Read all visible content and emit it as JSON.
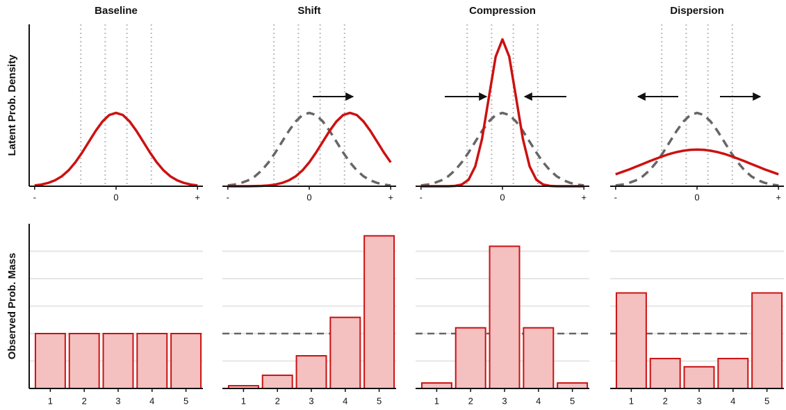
{
  "chart_data": [
    {
      "type": "line",
      "title": "Baseline",
      "ylabel": "Latent Prob. Density",
      "x": [
        -3,
        -2.75,
        -2.5,
        -2.25,
        -2,
        -1.75,
        -1.5,
        -1.25,
        -1,
        -0.75,
        -0.5,
        -0.25,
        0,
        0.25,
        0.5,
        0.75,
        1,
        1.25,
        1.5,
        1.75,
        2,
        2.25,
        2.5,
        2.75,
        3
      ],
      "series": [
        {
          "color": "#cc1111",
          "style": "solid",
          "values": [
            0.004,
            0.009,
            0.018,
            0.032,
            0.054,
            0.086,
            0.13,
            0.183,
            0.242,
            0.301,
            0.352,
            0.387,
            0.399,
            0.387,
            0.352,
            0.301,
            0.242,
            0.183,
            0.13,
            0.086,
            0.054,
            0.032,
            0.018,
            0.009,
            0.004
          ]
        }
      ],
      "thresholds": [
        -1.3,
        -0.4,
        0.4,
        1.3
      ],
      "xlim": [
        -3.2,
        3.2
      ],
      "xticks": [
        {
          "value": -3,
          "label": "-"
        },
        0,
        {
          "value": 3,
          "label": "+"
        }
      ],
      "ylim": [
        0,
        0.88
      ]
    },
    {
      "type": "line",
      "title": "Shift",
      "x": [
        -3,
        -2.75,
        -2.5,
        -2.25,
        -2,
        -1.75,
        -1.5,
        -1.25,
        -1,
        -0.75,
        -0.5,
        -0.25,
        0,
        0.25,
        0.5,
        0.75,
        1,
        1.25,
        1.5,
        1.75,
        2,
        2.25,
        2.5,
        2.75,
        3
      ],
      "series": [
        {
          "color": "#666666",
          "style": "dashed",
          "values": [
            0.004,
            0.009,
            0.018,
            0.032,
            0.054,
            0.086,
            0.13,
            0.183,
            0.242,
            0.301,
            0.352,
            0.387,
            0.399,
            0.387,
            0.352,
            0.301,
            0.242,
            0.183,
            0.13,
            0.086,
            0.054,
            0.032,
            0.018,
            0.009,
            0.004
          ]
        },
        {
          "color": "#cc1111",
          "style": "solid",
          "values": [
            0,
            0,
            0,
            0,
            0.001,
            0.002,
            0.004,
            0.009,
            0.018,
            0.032,
            0.054,
            0.086,
            0.13,
            0.183,
            0.242,
            0.301,
            0.352,
            0.387,
            0.399,
            0.387,
            0.352,
            0.301,
            0.242,
            0.183,
            0.13
          ]
        }
      ],
      "thresholds": [
        -1.3,
        -0.4,
        0.4,
        1.3
      ],
      "xlim": [
        -3.2,
        3.2
      ],
      "xticks": [
        {
          "value": -3,
          "label": "-"
        },
        0,
        {
          "value": 3,
          "label": "+"
        }
      ],
      "ylim": [
        0,
        0.88
      ]
    },
    {
      "type": "line",
      "title": "Compression",
      "x": [
        -3,
        -2.75,
        -2.5,
        -2.25,
        -2,
        -1.75,
        -1.5,
        -1.25,
        -1,
        -0.75,
        -0.5,
        -0.25,
        0,
        0.25,
        0.5,
        0.75,
        1,
        1.25,
        1.5,
        1.75,
        2,
        2.25,
        2.5,
        2.75,
        3
      ],
      "series": [
        {
          "color": "#666666",
          "style": "dashed",
          "values": [
            0.004,
            0.009,
            0.018,
            0.032,
            0.054,
            0.086,
            0.13,
            0.183,
            0.242,
            0.301,
            0.352,
            0.387,
            0.399,
            0.387,
            0.352,
            0.301,
            0.242,
            0.183,
            0.13,
            0.086,
            0.054,
            0.032,
            0.018,
            0.009,
            0.004
          ]
        },
        {
          "color": "#cc1111",
          "style": "solid",
          "values": [
            0,
            0,
            0,
            0,
            0,
            0.002,
            0.009,
            0.035,
            0.108,
            0.259,
            0.484,
            0.704,
            0.798,
            0.704,
            0.484,
            0.259,
            0.108,
            0.035,
            0.009,
            0.002,
            0,
            0,
            0,
            0,
            0
          ]
        }
      ],
      "thresholds": [
        -1.3,
        -0.4,
        0.4,
        1.3
      ],
      "xlim": [
        -3.2,
        3.2
      ],
      "xticks": [
        {
          "value": -3,
          "label": "-"
        },
        0,
        {
          "value": 3,
          "label": "+"
        }
      ],
      "ylim": [
        0,
        0.88
      ]
    },
    {
      "type": "line",
      "title": "Dispersion",
      "x": [
        -3,
        -2.75,
        -2.5,
        -2.25,
        -2,
        -1.75,
        -1.5,
        -1.25,
        -1,
        -0.75,
        -0.5,
        -0.25,
        0,
        0.25,
        0.5,
        0.75,
        1,
        1.25,
        1.5,
        1.75,
        2,
        2.25,
        2.5,
        2.75,
        3
      ],
      "series": [
        {
          "color": "#666666",
          "style": "dashed",
          "values": [
            0.004,
            0.009,
            0.018,
            0.032,
            0.054,
            0.086,
            0.13,
            0.183,
            0.242,
            0.301,
            0.352,
            0.387,
            0.399,
            0.387,
            0.352,
            0.301,
            0.242,
            0.183,
            0.13,
            0.086,
            0.054,
            0.032,
            0.018,
            0.009,
            0.004
          ]
        },
        {
          "color": "#cc1111",
          "style": "solid",
          "values": [
            0.065,
            0.078,
            0.091,
            0.106,
            0.121,
            0.136,
            0.15,
            0.164,
            0.176,
            0.186,
            0.193,
            0.198,
            0.199,
            0.198,
            0.193,
            0.186,
            0.176,
            0.164,
            0.15,
            0.136,
            0.121,
            0.106,
            0.091,
            0.078,
            0.065
          ]
        }
      ],
      "thresholds": [
        -1.3,
        -0.4,
        0.4,
        1.3
      ],
      "xlim": [
        -3.2,
        3.2
      ],
      "xticks": [
        {
          "value": -3,
          "label": "-"
        },
        0,
        {
          "value": 3,
          "label": "+"
        }
      ],
      "ylim": [
        0,
        0.88
      ]
    },
    {
      "type": "bar",
      "ylabel": "Observed Prob. Mass",
      "categories": [
        "1",
        "2",
        "3",
        "4",
        "5"
      ],
      "values": [
        0.2,
        0.2,
        0.2,
        0.2,
        0.2
      ],
      "color": "#f4c0c0",
      "edgecolor": "#cc1111",
      "ylim": [
        0,
        0.6
      ],
      "yticks": [
        0.1,
        0.2,
        0.3,
        0.4,
        0.5
      ],
      "grid": true
    },
    {
      "type": "bar",
      "categories": [
        "1",
        "2",
        "3",
        "4",
        "5"
      ],
      "values": [
        0.01,
        0.048,
        0.119,
        0.259,
        0.556
      ],
      "reference": 0.2,
      "color": "#f4c0c0",
      "edgecolor": "#cc1111",
      "ylim": [
        0,
        0.6
      ],
      "yticks": [
        0.1,
        0.2,
        0.3,
        0.4,
        0.5
      ],
      "grid": true
    },
    {
      "type": "bar",
      "categories": [
        "1",
        "2",
        "3",
        "4",
        "5"
      ],
      "values": [
        0.02,
        0.221,
        0.518,
        0.221,
        0.02
      ],
      "reference": 0.2,
      "color": "#f4c0c0",
      "edgecolor": "#cc1111",
      "ylim": [
        0,
        0.6
      ],
      "yticks": [
        0.1,
        0.2,
        0.3,
        0.4,
        0.5
      ],
      "grid": true
    },
    {
      "type": "bar",
      "categories": [
        "1",
        "2",
        "3",
        "4",
        "5"
      ],
      "values": [
        0.348,
        0.109,
        0.079,
        0.109,
        0.348
      ],
      "reference": 0.2,
      "color": "#f4c0c0",
      "edgecolor": "#cc1111",
      "ylim": [
        0,
        0.6
      ],
      "yticks": [
        0.1,
        0.2,
        0.3,
        0.4,
        0.5
      ],
      "grid": true
    }
  ]
}
